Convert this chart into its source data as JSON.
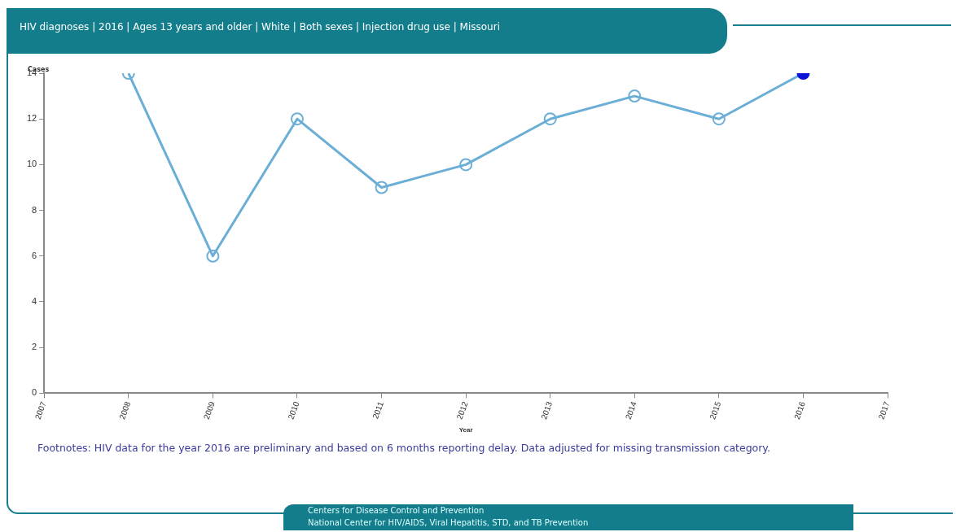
{
  "chart_data": {
    "type": "line",
    "title": "HIV diagnoses | 2016 | Ages 13 years and older | White | Both sexes | Injection drug use | Missouri",
    "xlabel": "Year",
    "ylabel": "Cases",
    "x": [
      2008,
      2009,
      2010,
      2011,
      2012,
      2013,
      2014,
      2015,
      2016
    ],
    "series": [
      {
        "color": "#6baed6",
        "colors": [
          "#6baed6",
          "#6baed6",
          "#6baed6",
          "#6baed6",
          "#6baed6",
          "#6baed6",
          "#6baed6",
          "#6baed6",
          "#0a14d8"
        ],
        "values": [
          14,
          6,
          12,
          9,
          10,
          12,
          13,
          12,
          14
        ]
      }
    ],
    "xlim": [
      2007,
      2017
    ],
    "xticks": [
      2007,
      2008,
      2009,
      2010,
      2011,
      2012,
      2013,
      2014,
      2015,
      2016,
      2017
    ],
    "ylim": [
      0,
      14
    ],
    "yticks": [
      0,
      2,
      4,
      6,
      8,
      10,
      12,
      14
    ],
    "grid": false,
    "legend": false,
    "marker": "circle",
    "line_style": "solid",
    "annotations": [
      "Footnotes:  HIV data for the year 2016 are preliminary and based on 6 months reporting delay. Data adjusted for missing transmission category.",
      "Centers for Disease Control and Prevention",
      "National Center for HIV/AIDS, Viral Hepatitis, STD, and TB Prevention"
    ]
  }
}
